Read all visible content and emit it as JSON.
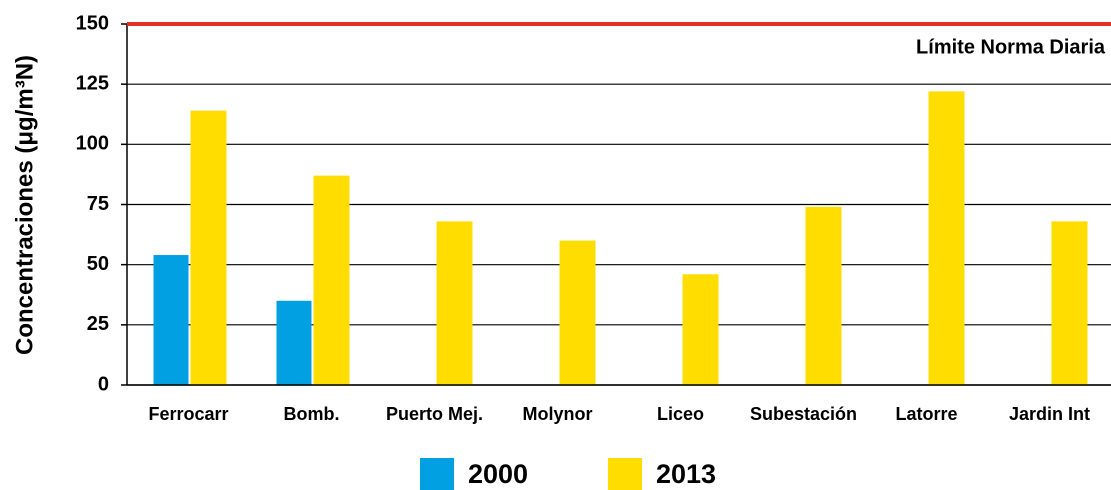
{
  "chart_data": {
    "type": "bar",
    "y_label": "Concentraciones (μg/m³N)",
    "categories": [
      "Ferrocarr",
      "Bomb.",
      "Puerto Mej.",
      "Molynor",
      "Liceo",
      "Subestación",
      "Latorre",
      "Jardin Int"
    ],
    "series": [
      {
        "name": "2000",
        "color": "#00a0e3",
        "values": [
          54,
          35,
          null,
          null,
          null,
          null,
          null,
          null
        ]
      },
      {
        "name": "2013",
        "color": "#ffdd00",
        "values": [
          114,
          87,
          68,
          60,
          46,
          74,
          122,
          68
        ]
      }
    ],
    "reference_line": {
      "value": 150,
      "label": "Límite Norma Diaria",
      "color": "#e0302a"
    },
    "ylim": [
      0,
      150
    ],
    "yticks": [
      0,
      25,
      50,
      75,
      100,
      125,
      150
    ],
    "grid": true
  }
}
